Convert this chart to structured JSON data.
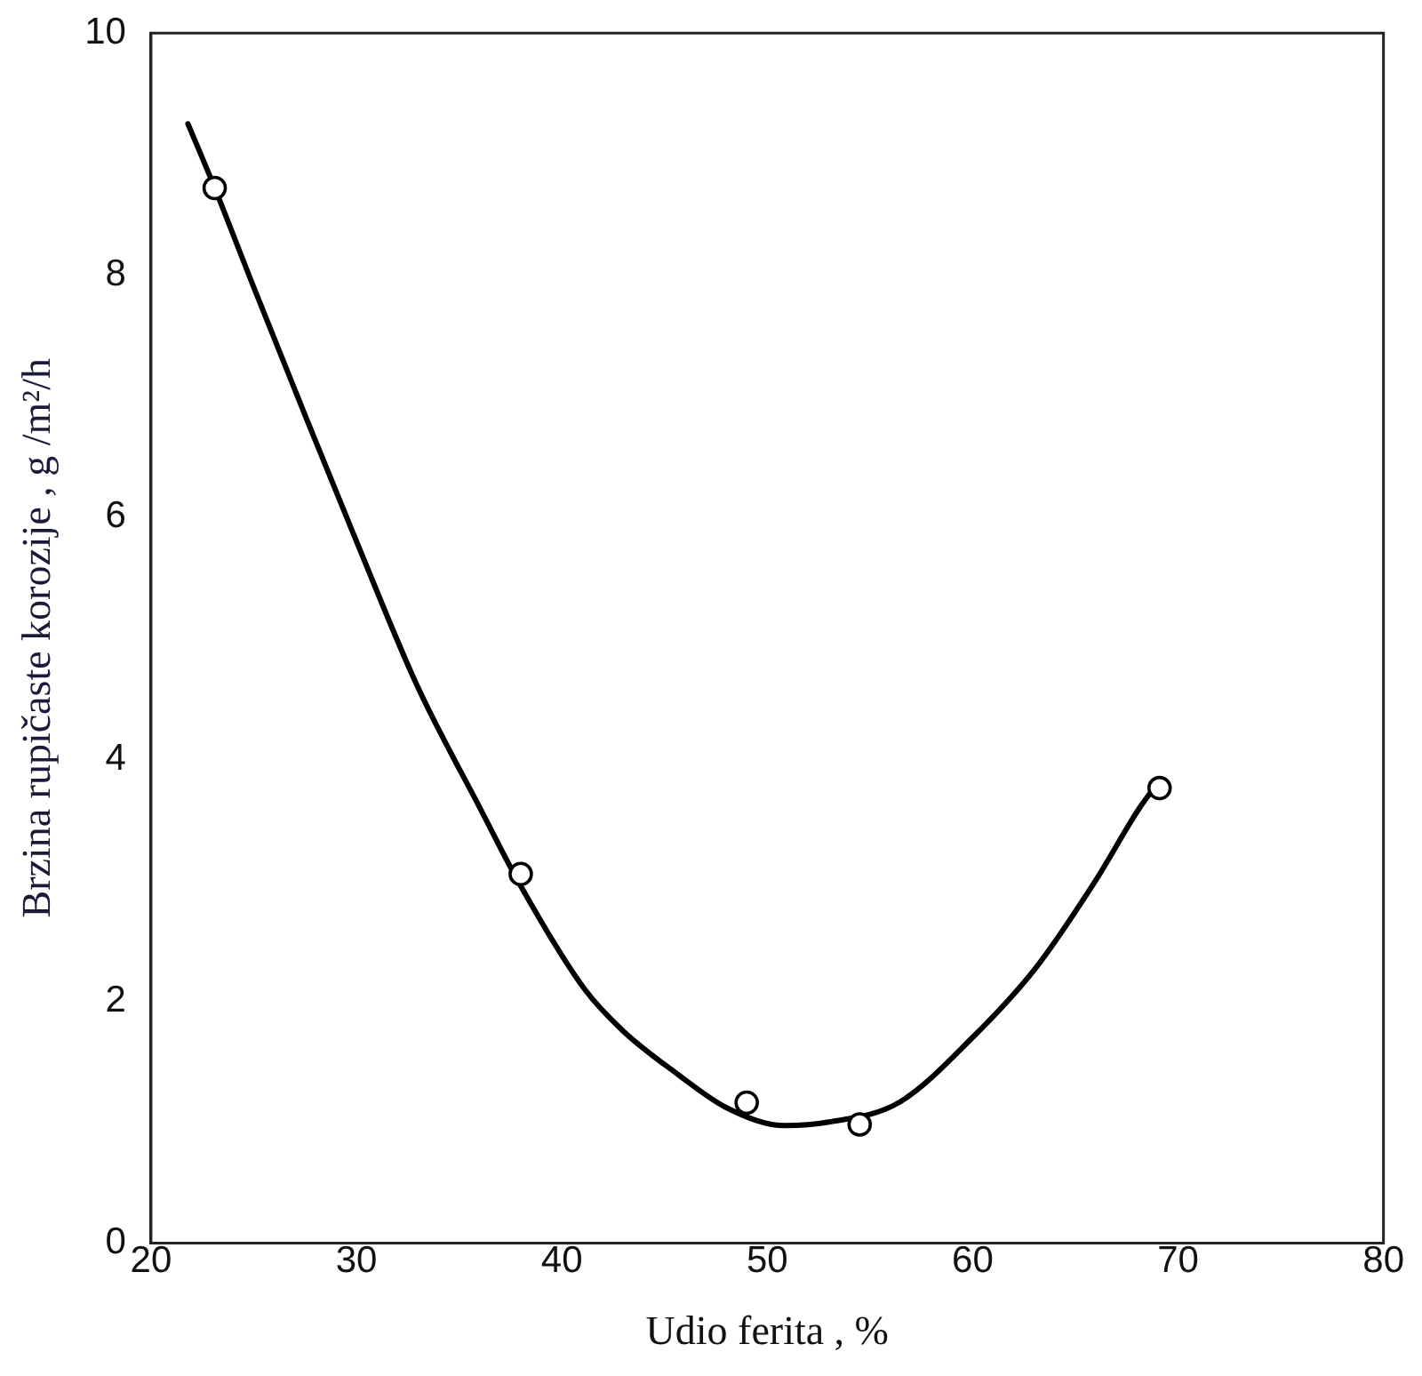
{
  "chart_data": {
    "type": "scatter",
    "xlabel": "Udio ferita , %",
    "ylabel": "Brzina rupičaste korozije , g /m²/h",
    "xlim": [
      20,
      80
    ],
    "xticks": [
      20,
      30,
      40,
      50,
      60,
      70,
      80
    ],
    "ylim": [
      0,
      10
    ],
    "yticks": [
      0,
      2,
      4,
      6,
      8,
      10
    ],
    "grid": false,
    "legend": false,
    "series": [
      {
        "color": "#000000",
        "marker": "circle",
        "x": [
          23.1,
          38,
          49,
          54.5,
          69.1
        ],
        "values": [
          8.72,
          3.05,
          1.16,
          0.98,
          3.76
        ]
      },
      {
        "type": "line",
        "color": "#000000",
        "marker": "none",
        "line_style": "solid",
        "x": [
          21.8,
          23.1,
          25,
          27.6,
          30,
          33,
          36,
          38,
          41.1,
          43,
          45.6,
          48,
          50.9,
          53,
          56.4,
          60,
          63.1,
          66,
          68.1,
          69
        ],
        "values": [
          9.25,
          8.72,
          7.9,
          6.8,
          5.8,
          4.59,
          3.6,
          2.95,
          2.1,
          1.75,
          1.4,
          1.12,
          0.97,
          1.0,
          1.16,
          1.7,
          2.28,
          3.0,
          3.59,
          3.8
        ]
      }
    ]
  }
}
